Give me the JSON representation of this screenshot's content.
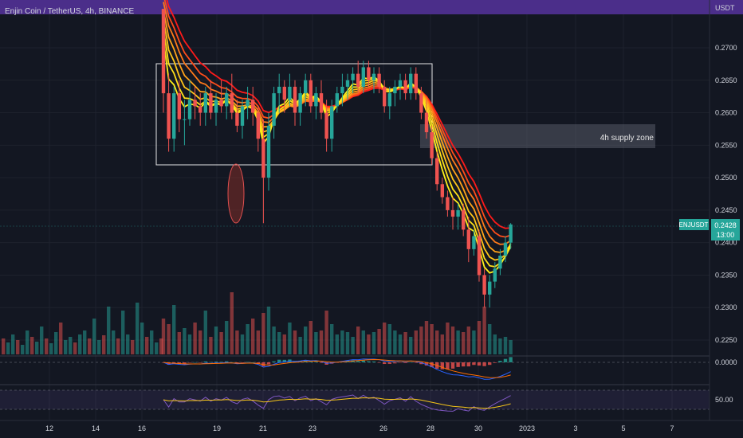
{
  "header": {
    "symbol_title": "Enjin Coin / TetherUS, 4h, BINANCE"
  },
  "chart_data": {
    "type": "candlestick",
    "title": "Enjin Coin / TetherUS, 4h, BINANCE",
    "symbol": "ENJUSDT",
    "currency_label": "USDT",
    "last_price": "0.2428",
    "countdown": "13:00",
    "y_axis_ticks": [
      "0.2700",
      "0.2650",
      "0.2600",
      "0.2550",
      "0.2500",
      "0.2450",
      "0.2400",
      "0.2350",
      "0.2300",
      "0.2250"
    ],
    "ylim": [
      0.221,
      0.276
    ],
    "x_ticks": [
      "12",
      "14",
      "16",
      "19",
      "21",
      "23",
      "26",
      "28",
      "30",
      "2023",
      "3",
      "5",
      "7"
    ],
    "candles": [
      [
        0.276,
        0.276,
        0.26,
        0.263
      ],
      [
        0.263,
        0.266,
        0.254,
        0.256
      ],
      [
        0.256,
        0.264,
        0.254,
        0.263
      ],
      [
        0.263,
        0.265,
        0.257,
        0.259
      ],
      [
        0.259,
        0.262,
        0.255,
        0.259
      ],
      [
        0.259,
        0.265,
        0.258,
        0.262
      ],
      [
        0.262,
        0.264,
        0.259,
        0.261
      ],
      [
        0.261,
        0.263,
        0.258,
        0.26
      ],
      [
        0.26,
        0.264,
        0.258,
        0.263
      ],
      [
        0.263,
        0.265,
        0.259,
        0.26
      ],
      [
        0.26,
        0.263,
        0.258,
        0.262
      ],
      [
        0.262,
        0.265,
        0.26,
        0.261
      ],
      [
        0.261,
        0.264,
        0.259,
        0.263
      ],
      [
        0.263,
        0.266,
        0.259,
        0.26
      ],
      [
        0.26,
        0.262,
        0.257,
        0.258
      ],
      [
        0.258,
        0.262,
        0.256,
        0.261
      ],
      [
        0.261,
        0.264,
        0.259,
        0.262
      ],
      [
        0.262,
        0.264,
        0.258,
        0.26
      ],
      [
        0.26,
        0.261,
        0.254,
        0.256
      ],
      [
        0.256,
        0.259,
        0.243,
        0.25
      ],
      [
        0.25,
        0.26,
        0.248,
        0.258
      ],
      [
        0.258,
        0.264,
        0.256,
        0.263
      ],
      [
        0.263,
        0.266,
        0.26,
        0.264
      ],
      [
        0.264,
        0.265,
        0.26,
        0.262
      ],
      [
        0.262,
        0.266,
        0.261,
        0.264
      ],
      [
        0.264,
        0.265,
        0.258,
        0.26
      ],
      [
        0.26,
        0.264,
        0.258,
        0.263
      ],
      [
        0.263,
        0.266,
        0.261,
        0.265
      ],
      [
        0.265,
        0.266,
        0.26,
        0.261
      ],
      [
        0.261,
        0.264,
        0.259,
        0.263
      ],
      [
        0.263,
        0.265,
        0.259,
        0.26
      ],
      [
        0.26,
        0.262,
        0.254,
        0.256
      ],
      [
        0.256,
        0.262,
        0.254,
        0.261
      ],
      [
        0.261,
        0.264,
        0.26,
        0.263
      ],
      [
        0.263,
        0.266,
        0.261,
        0.264
      ],
      [
        0.264,
        0.266,
        0.262,
        0.265
      ],
      [
        0.265,
        0.267,
        0.263,
        0.266
      ],
      [
        0.266,
        0.268,
        0.263,
        0.264
      ],
      [
        0.264,
        0.268,
        0.263,
        0.267
      ],
      [
        0.267,
        0.268,
        0.264,
        0.265
      ],
      [
        0.265,
        0.267,
        0.263,
        0.266
      ],
      [
        0.266,
        0.267,
        0.263,
        0.264
      ],
      [
        0.264,
        0.265,
        0.26,
        0.261
      ],
      [
        0.261,
        0.264,
        0.259,
        0.263
      ],
      [
        0.263,
        0.265,
        0.261,
        0.264
      ],
      [
        0.264,
        0.266,
        0.262,
        0.265
      ],
      [
        0.265,
        0.266,
        0.262,
        0.263
      ],
      [
        0.263,
        0.267,
        0.262,
        0.266
      ],
      [
        0.266,
        0.267,
        0.262,
        0.263
      ],
      [
        0.263,
        0.264,
        0.259,
        0.26
      ],
      [
        0.26,
        0.262,
        0.256,
        0.257
      ],
      [
        0.257,
        0.258,
        0.252,
        0.253
      ],
      [
        0.253,
        0.254,
        0.248,
        0.249
      ],
      [
        0.249,
        0.25,
        0.246,
        0.247
      ],
      [
        0.247,
        0.248,
        0.244,
        0.245
      ],
      [
        0.245,
        0.247,
        0.242,
        0.244
      ],
      [
        0.244,
        0.246,
        0.242,
        0.245
      ],
      [
        0.245,
        0.246,
        0.241,
        0.242
      ],
      [
        0.242,
        0.244,
        0.237,
        0.239
      ],
      [
        0.239,
        0.242,
        0.238,
        0.241
      ],
      [
        0.241,
        0.242,
        0.234,
        0.235
      ],
      [
        0.235,
        0.236,
        0.23,
        0.232
      ],
      [
        0.232,
        0.235,
        0.23,
        0.234
      ],
      [
        0.234,
        0.237,
        0.233,
        0.236
      ],
      [
        0.236,
        0.239,
        0.235,
        0.238
      ],
      [
        0.238,
        0.241,
        0.237,
        0.24
      ],
      [
        0.24,
        0.243,
        0.239,
        0.2428
      ]
    ],
    "volumes": [
      45,
      38,
      62,
      28,
      33,
      25,
      40,
      30,
      55,
      22,
      35,
      28,
      42,
      78,
      30,
      25,
      38,
      45,
      30,
      52,
      60,
      35,
      28,
      25,
      40,
      30,
      22,
      35,
      42,
      28,
      30,
      55,
      38,
      25,
      30,
      28,
      22,
      35,
      30,
      25,
      28,
      32,
      40,
      38,
      30,
      25,
      28,
      22,
      30,
      35,
      42,
      38,
      30,
      25,
      40,
      35,
      30,
      28,
      35,
      30,
      42,
      60,
      38,
      25,
      20,
      22,
      18
    ],
    "ribbon_colors": [
      "#ff1a1a",
      "#ff4d1a",
      "#ff7a1a",
      "#ffa31a",
      "#ffc61a",
      "#ffe01a",
      "#fff01a"
    ],
    "annotations": {
      "supply_zone_label": "4h supply zone"
    },
    "macd": {
      "zero_label": "0.0000"
    },
    "rsi": {
      "level_label": "50.00"
    }
  }
}
